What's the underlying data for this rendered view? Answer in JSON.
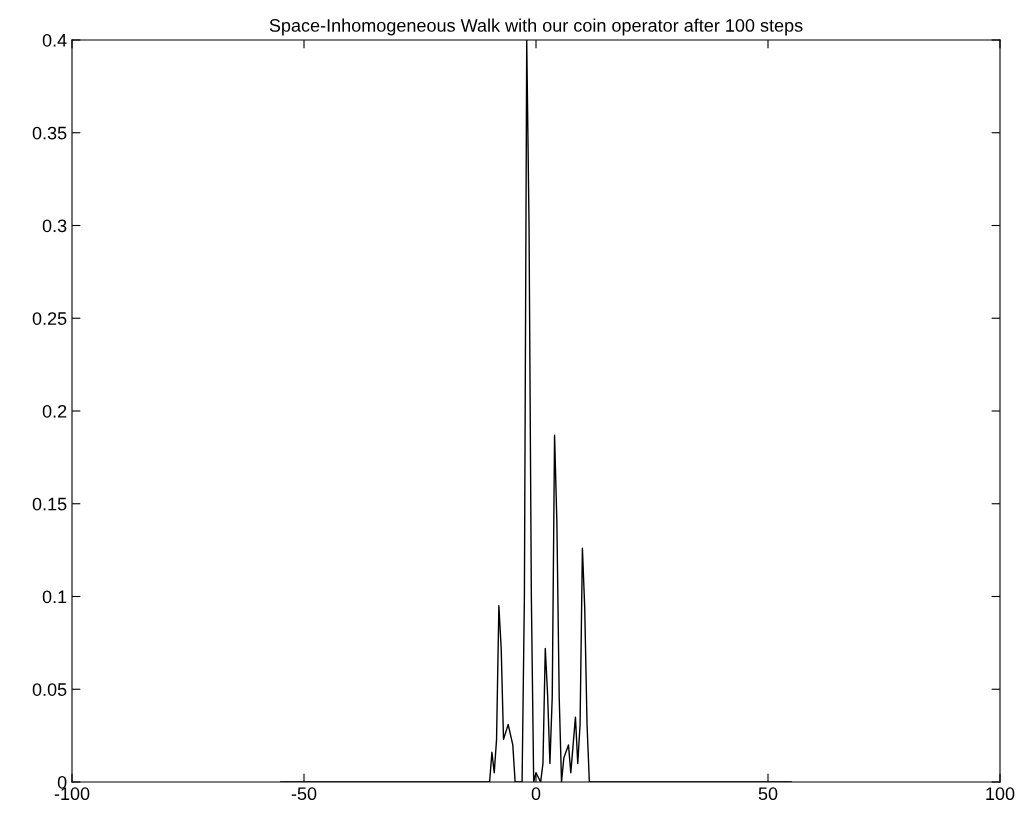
{
  "chart_data": {
    "type": "line",
    "title": "Space-Inhomogeneous Walk with our coin operator after 100 steps",
    "x": [
      -55,
      -12,
      -10,
      -9.5,
      -9,
      -8.5,
      -8,
      -7.5,
      -7,
      -6,
      -5,
      -4.5,
      -3,
      -2.5,
      -2,
      -1.5,
      -1,
      -0.5,
      0,
      1,
      1.5,
      2,
      2.5,
      3,
      3.5,
      4,
      4.5,
      5,
      5.5,
      6,
      7,
      7.5,
      8,
      8.5,
      9,
      9.5,
      10,
      10.5,
      11,
      11.5,
      55
    ],
    "series": [
      {
        "color": "#000000",
        "values": [
          0,
          0,
          0,
          0.016,
          0.005,
          0.023,
          0.095,
          0.072,
          0.023,
          0.031,
          0.02,
          0,
          0,
          0.1,
          0.4,
          0.3,
          0.1,
          0,
          0.005,
          0,
          0.01,
          0.072,
          0.047,
          0.01,
          0.046,
          0.187,
          0.14,
          0.046,
          0,
          0.013,
          0.02,
          0.005,
          0.02,
          0.035,
          0.01,
          0.031,
          0.126,
          0.094,
          0.031,
          0,
          0
        ]
      }
    ],
    "xlim": [
      -100,
      100
    ],
    "xticks": [
      -100,
      -50,
      0,
      50,
      100
    ],
    "ylim": [
      0,
      0.4
    ],
    "yticks": [
      0,
      0.05,
      0.1,
      0.15,
      0.2,
      0.25,
      0.3,
      0.35,
      0.4
    ],
    "grid": false,
    "legend": false,
    "marker": "none",
    "line_style": "solid"
  }
}
